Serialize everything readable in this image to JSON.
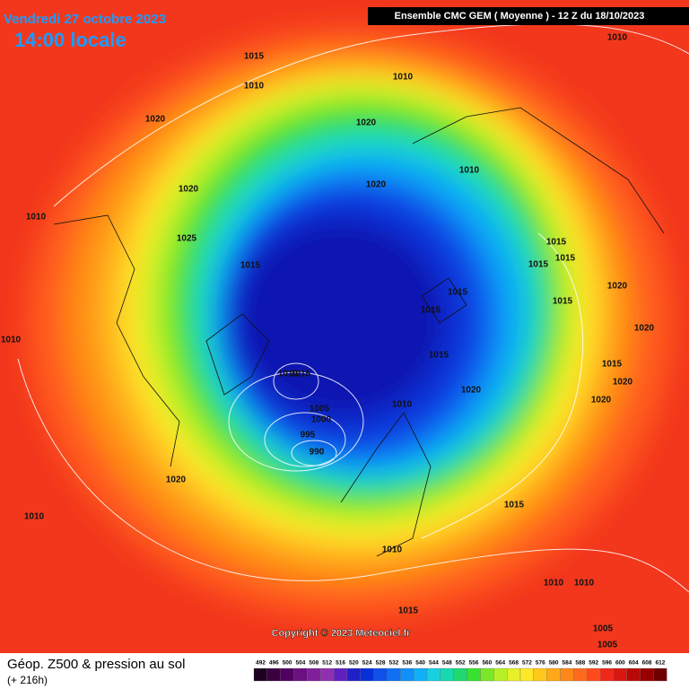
{
  "header": {
    "date": "Vendredi 27 octobre 2023",
    "time": "14:00 locale",
    "run": "Ensemble CMC GEM  ( Moyenne )  -  12 Z du 18/10/2023"
  },
  "isobar_labels": [
    1015,
    1010,
    1010,
    1010,
    1020,
    1020,
    1020,
    1010,
    1020,
    1010,
    1025,
    1015,
    1015,
    1015,
    1015,
    1015,
    1015,
    1020,
    1015,
    1010,
    1020,
    1015,
    1015,
    1010,
    1015,
    1020,
    1020,
    1020,
    1010,
    1005,
    1000,
    995,
    990,
    1020,
    1010,
    1015,
    1010,
    1010,
    1010,
    1015,
    1005,
    1005
  ],
  "copyright": "Copyright © 2023 Meteociel.fr",
  "legend": {
    "title": "Géop. Z500 & pression au sol",
    "lead": "(+ 216h)",
    "scale": [
      492,
      496,
      500,
      504,
      508,
      512,
      516,
      520,
      524,
      528,
      532,
      536,
      540,
      544,
      548,
      552,
      556,
      560,
      564,
      568,
      572,
      576,
      580,
      584,
      588,
      592,
      596,
      600,
      604,
      608,
      612
    ]
  }
}
